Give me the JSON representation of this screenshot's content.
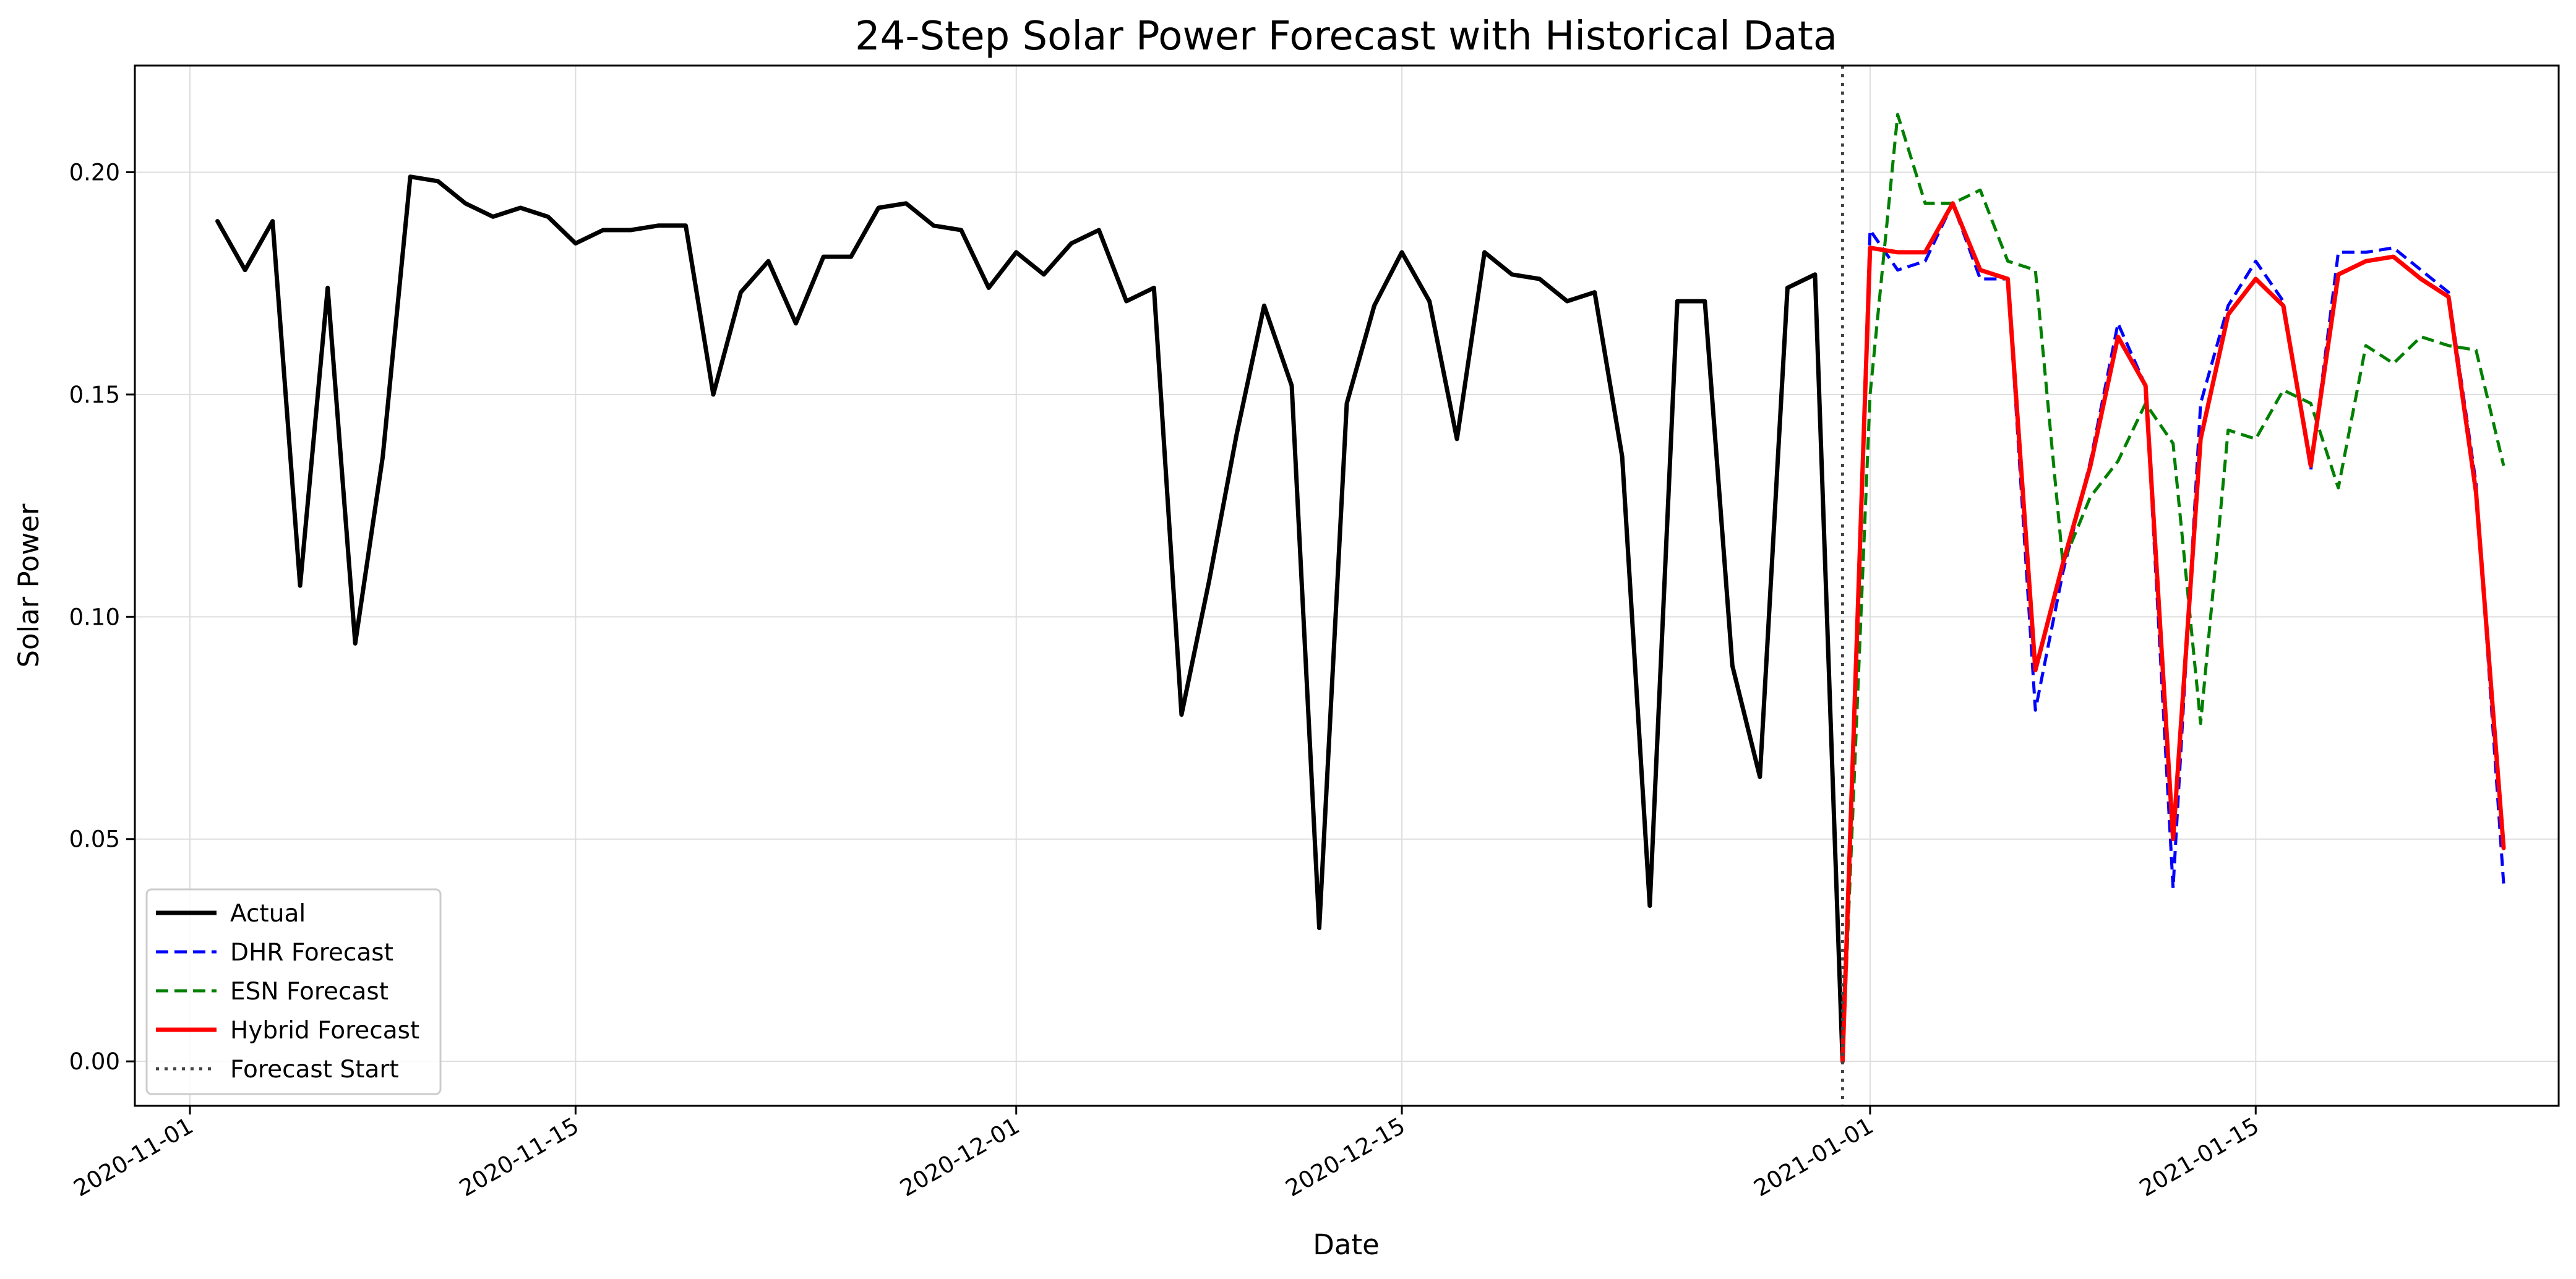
{
  "chart_data": {
    "type": "line",
    "title": "24-Step Solar Power Forecast with Historical Data",
    "xlabel": "Date",
    "ylabel": "Solar Power",
    "xlim": [
      "2020-10-30",
      "2021-01-26"
    ],
    "ylim": [
      -0.01,
      0.224
    ],
    "x_ticks": [
      "2020-11-01",
      "2020-11-15",
      "2020-12-01",
      "2020-12-15",
      "2021-01-01",
      "2021-01-15"
    ],
    "y_ticks": [
      "0.00",
      "0.05",
      "0.10",
      "0.15",
      "0.20"
    ],
    "grid": true,
    "legend_position": "lower-left",
    "forecast_start": {
      "label": "Forecast Start",
      "date": "2020-12-31",
      "color": "#444444",
      "style": "dotted"
    },
    "series": [
      {
        "name": "Actual",
        "color": "#000000",
        "style": "solid",
        "x": [
          "2020-11-02",
          "2020-11-03",
          "2020-11-04",
          "2020-11-05",
          "2020-11-06",
          "2020-11-07",
          "2020-11-08",
          "2020-11-09",
          "2020-11-10",
          "2020-11-11",
          "2020-11-12",
          "2020-11-13",
          "2020-11-14",
          "2020-11-15",
          "2020-11-16",
          "2020-11-17",
          "2020-11-18",
          "2020-11-19",
          "2020-11-20",
          "2020-11-21",
          "2020-11-22",
          "2020-11-23",
          "2020-11-24",
          "2020-11-25",
          "2020-11-26",
          "2020-11-27",
          "2020-11-28",
          "2020-11-29",
          "2020-11-30",
          "2020-12-01",
          "2020-12-02",
          "2020-12-03",
          "2020-12-04",
          "2020-12-05",
          "2020-12-06",
          "2020-12-07",
          "2020-12-08",
          "2020-12-09",
          "2020-12-10",
          "2020-12-11",
          "2020-12-12",
          "2020-12-13",
          "2020-12-14",
          "2020-12-15",
          "2020-12-16",
          "2020-12-17",
          "2020-12-18",
          "2020-12-19",
          "2020-12-20",
          "2020-12-21",
          "2020-12-22",
          "2020-12-23",
          "2020-12-24",
          "2020-12-25",
          "2020-12-26",
          "2020-12-27",
          "2020-12-28",
          "2020-12-29",
          "2020-12-30",
          "2020-12-31"
        ],
        "values": [
          0.189,
          0.178,
          0.189,
          0.107,
          0.174,
          0.094,
          0.136,
          0.199,
          0.198,
          0.193,
          0.19,
          0.192,
          0.19,
          0.184,
          0.187,
          0.187,
          0.188,
          0.188,
          0.15,
          0.173,
          0.18,
          0.166,
          0.181,
          0.181,
          0.192,
          0.193,
          0.188,
          0.187,
          0.174,
          0.182,
          0.177,
          0.184,
          0.187,
          0.171,
          0.174,
          0.078,
          0.108,
          0.141,
          0.17,
          0.152,
          0.03,
          0.148,
          0.17,
          0.182,
          0.171,
          0.14,
          0.182,
          0.177,
          0.176,
          0.171,
          0.173,
          0.136,
          0.035,
          0.171,
          0.171,
          0.089,
          0.064,
          0.174,
          0.177,
          0.0
        ]
      },
      {
        "name": "DHR Forecast",
        "color": "#0000ff",
        "style": "dashed",
        "x": [
          "2020-12-31",
          "2021-01-01",
          "2021-01-02",
          "2021-01-03",
          "2021-01-04",
          "2021-01-05",
          "2021-01-06",
          "2021-01-07",
          "2021-01-08",
          "2021-01-09",
          "2021-01-10",
          "2021-01-11",
          "2021-01-12",
          "2021-01-13",
          "2021-01-14",
          "2021-01-15",
          "2021-01-16",
          "2021-01-17",
          "2021-01-18",
          "2021-01-19",
          "2021-01-20",
          "2021-01-21",
          "2021-01-22",
          "2021-01-23",
          "2021-01-24"
        ],
        "values": [
          0.0,
          0.187,
          0.178,
          0.18,
          0.193,
          0.176,
          0.176,
          0.079,
          0.11,
          0.135,
          0.166,
          0.152,
          0.039,
          0.148,
          0.17,
          0.18,
          0.171,
          0.133,
          0.182,
          0.182,
          0.183,
          0.178,
          0.173,
          0.13,
          0.04
        ]
      },
      {
        "name": "ESN Forecast",
        "color": "#008000",
        "style": "dashed",
        "x": [
          "2020-12-31",
          "2021-01-01",
          "2021-01-02",
          "2021-01-03",
          "2021-01-04",
          "2021-01-05",
          "2021-01-06",
          "2021-01-07",
          "2021-01-08",
          "2021-01-09",
          "2021-01-10",
          "2021-01-11",
          "2021-01-12",
          "2021-01-13",
          "2021-01-14",
          "2021-01-15",
          "2021-01-16",
          "2021-01-17",
          "2021-01-18",
          "2021-01-19",
          "2021-01-20",
          "2021-01-21",
          "2021-01-22",
          "2021-01-23",
          "2021-01-24"
        ],
        "values": [
          0.0,
          0.15,
          0.213,
          0.193,
          0.193,
          0.196,
          0.18,
          0.178,
          0.112,
          0.127,
          0.135,
          0.148,
          0.139,
          0.076,
          0.142,
          0.14,
          0.151,
          0.148,
          0.129,
          0.161,
          0.157,
          0.163,
          0.161,
          0.16,
          0.134
        ]
      },
      {
        "name": "Hybrid Forecast",
        "color": "#ff0000",
        "style": "solid",
        "x": [
          "2020-12-31",
          "2021-01-01",
          "2021-01-02",
          "2021-01-03",
          "2021-01-04",
          "2021-01-05",
          "2021-01-06",
          "2021-01-07",
          "2021-01-08",
          "2021-01-09",
          "2021-01-10",
          "2021-01-11",
          "2021-01-12",
          "2021-01-13",
          "2021-01-14",
          "2021-01-15",
          "2021-01-16",
          "2021-01-17",
          "2021-01-18",
          "2021-01-19",
          "2021-01-20",
          "2021-01-21",
          "2021-01-22",
          "2021-01-23",
          "2021-01-24"
        ],
        "values": [
          0.0,
          0.183,
          0.182,
          0.182,
          0.193,
          0.178,
          0.176,
          0.088,
          0.112,
          0.134,
          0.163,
          0.152,
          0.05,
          0.14,
          0.168,
          0.176,
          0.17,
          0.134,
          0.177,
          0.18,
          0.181,
          0.176,
          0.172,
          0.128,
          0.048
        ]
      }
    ]
  }
}
